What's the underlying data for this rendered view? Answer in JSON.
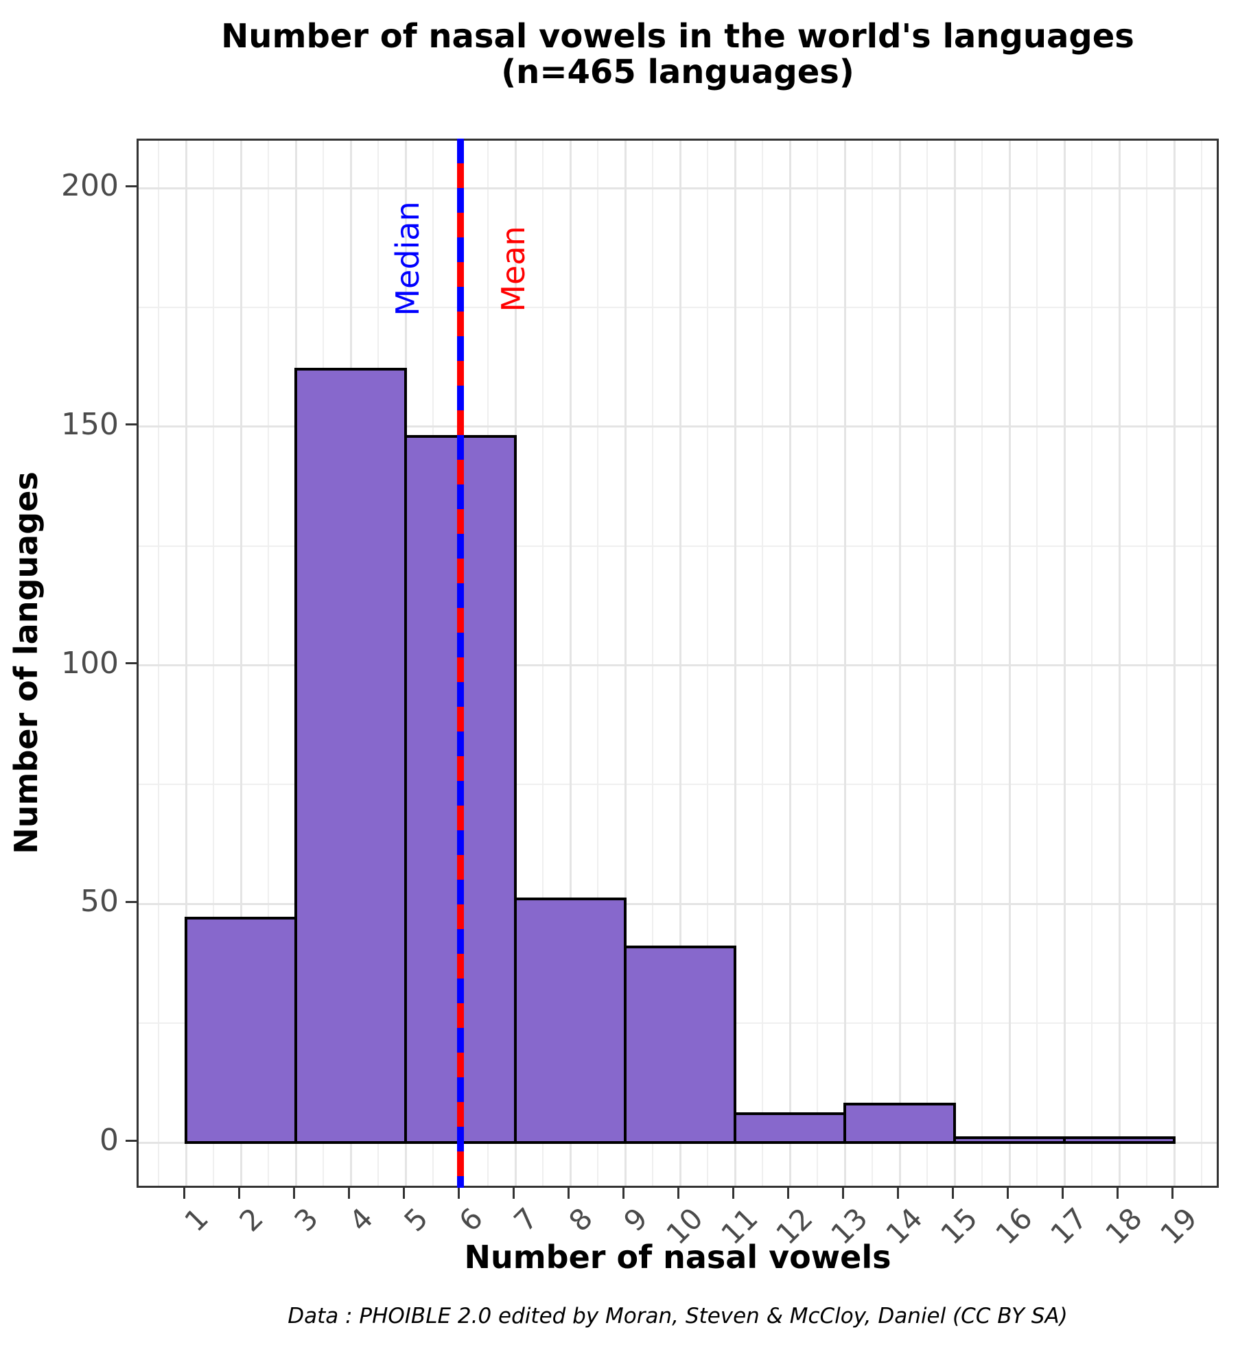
{
  "title": {
    "line1": "Number of nasal vowels in the world's languages",
    "line2": "(n=465 languages)"
  },
  "caption": "Data : PHOIBLE 2.0 edited by Moran, Steven & McCloy, Daniel (CC BY SA)",
  "annotations": {
    "median_label": "Median",
    "mean_label": "Mean",
    "median_x": 6,
    "mean_x": 6
  },
  "colors": {
    "bar_fill": "#8768CC",
    "bar_stroke": "#000000",
    "grid_major": "#E4E4E4",
    "grid_minor": "#EFEFEF",
    "axis_line": "#333333",
    "tick_label": "#4a4a4a",
    "median_line": "#0000FF",
    "mean_line": "#FF0000",
    "panel_bg": "#FFFFFF"
  },
  "chart_data": {
    "type": "bar",
    "subtype": "histogram",
    "title": "Number of nasal vowels in the world's languages (n=465 languages)",
    "xlabel": "Number of nasal vowels",
    "ylabel": "Number of languages",
    "n_total": 465,
    "bin_edges": [
      1,
      3,
      5,
      7,
      9,
      11,
      13,
      15,
      17,
      19
    ],
    "counts": [
      47,
      162,
      148,
      51,
      41,
      6,
      8,
      1,
      1
    ],
    "x_ticks": [
      1,
      2,
      3,
      4,
      5,
      6,
      7,
      8,
      9,
      10,
      11,
      12,
      13,
      14,
      15,
      16,
      17,
      18,
      19
    ],
    "y_ticks": [
      0,
      50,
      100,
      150,
      200
    ],
    "y_minor_ticks": [
      25,
      75,
      125,
      175
    ],
    "x_minor_ticks": [
      0.5,
      1.5,
      2.5,
      3.5,
      4.5,
      5.5,
      6.5,
      7.5,
      8.5,
      9.5,
      10.5,
      11.5,
      12.5,
      13.5,
      14.5,
      15.5,
      16.5,
      17.5,
      18.5,
      19.5
    ],
    "ylim": [
      0,
      200
    ],
    "grid": true,
    "legend": false,
    "median": 6,
    "mean": 6
  }
}
